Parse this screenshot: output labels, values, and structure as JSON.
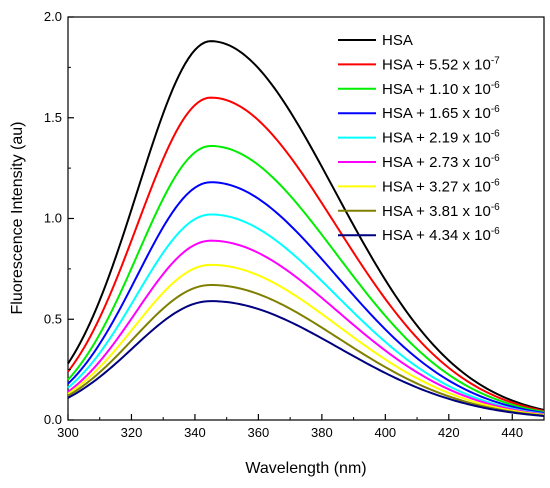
{
  "chart_data": {
    "type": "line",
    "xlabel": "Wavelength (nm)",
    "ylabel": "Fluorescence Intensity (au)",
    "xlim": [
      300,
      450
    ],
    "ylim": [
      0.0,
      2.0
    ],
    "x_ticks": [
      "300",
      "320",
      "340",
      "360",
      "380",
      "400",
      "420",
      "440"
    ],
    "y_ticks": [
      "0.0",
      "0.5",
      "1.0",
      "1.5",
      "2.0"
    ],
    "grid": false,
    "legend_position": "top-right",
    "series": [
      {
        "name": "HSA",
        "name_base": "HSA",
        "name_exp": "",
        "color": "#000000",
        "peak_x": 345,
        "peak_y": 1.88,
        "start_y": 0.28,
        "end_y": 0.05
      },
      {
        "name": "HSA + 5.52 x 10-7",
        "name_base": "HSA + 5.52 x 10",
        "name_exp": "-7",
        "color": "#ff0000",
        "peak_x": 345,
        "peak_y": 1.6,
        "start_y": 0.24,
        "end_y": 0.045
      },
      {
        "name": "HSA + 1.10 x 10-6",
        "name_base": "HSA + 1.10 x 10",
        "name_exp": "-6",
        "color": "#00ee00",
        "peak_x": 345,
        "peak_y": 1.36,
        "start_y": 0.2,
        "end_y": 0.04
      },
      {
        "name": "HSA + 1.65 x 10-6",
        "name_base": "HSA + 1.65 x 10",
        "name_exp": "-6",
        "color": "#0000ff",
        "peak_x": 345,
        "peak_y": 1.18,
        "start_y": 0.18,
        "end_y": 0.035
      },
      {
        "name": "HSA + 2.19 x 10-6",
        "name_base": "HSA + 2.19 x 10",
        "name_exp": "-6",
        "color": "#00ffff",
        "peak_x": 345,
        "peak_y": 1.02,
        "start_y": 0.16,
        "end_y": 0.03
      },
      {
        "name": "HSA + 2.73 x 10-6",
        "name_base": "HSA + 2.73 x 10",
        "name_exp": "-6",
        "color": "#ff00ff",
        "peak_x": 345,
        "peak_y": 0.89,
        "start_y": 0.14,
        "end_y": 0.028
      },
      {
        "name": "HSA + 3.27 x 10-6",
        "name_base": "HSA + 3.27 x 10",
        "name_exp": "-6",
        "color": "#ffff00",
        "peak_x": 345,
        "peak_y": 0.77,
        "start_y": 0.13,
        "end_y": 0.025
      },
      {
        "name": "HSA + 3.81 x 10-6",
        "name_base": "HSA + 3.81 x 10",
        "name_exp": "-6",
        "color": "#808000",
        "peak_x": 345,
        "peak_y": 0.67,
        "start_y": 0.12,
        "end_y": 0.022
      },
      {
        "name": "HSA + 4.34 x 10-6",
        "name_base": "HSA + 4.34 x 10",
        "name_exp": "-6",
        "color": "#000080",
        "peak_x": 345,
        "peak_y": 0.59,
        "start_y": 0.11,
        "end_y": 0.02
      }
    ]
  }
}
